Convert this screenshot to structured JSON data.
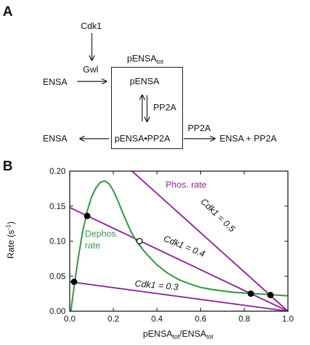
{
  "panel_a": {
    "label": "A",
    "cdk1": "Cdk1",
    "gwl": "Gwl",
    "ensa_left_top": "ENSA",
    "pensa_tot_main": "pENSA",
    "pensa_tot_sub": "tot",
    "pensa_box": "pENSA",
    "pp2a_side": "PP2A",
    "complex": "pENSA•PP2A",
    "ensa_left_bottom": "ENSA",
    "pp2a_right": "PP2A",
    "products": "ENSA + PP2A"
  },
  "panel_b": {
    "label": "B"
  },
  "colors": {
    "phos": "#8e2a9b",
    "dephos": "#3a9a47",
    "axis": "#111111"
  },
  "chart_data": {
    "type": "line",
    "xlabel_parts": [
      "pENSA",
      "tot",
      "/ENSA",
      "tot"
    ],
    "ylabel_parts": [
      "Rate (s",
      "-1",
      ")"
    ],
    "xlim": [
      0,
      1
    ],
    "ylim": [
      0,
      0.2
    ],
    "xticks": [
      0.0,
      0.2,
      0.4,
      0.6,
      0.8,
      1.0
    ],
    "xtick_labels": [
      "0.0",
      "0.2",
      "0.4",
      "0.6",
      "0.8",
      "1.0"
    ],
    "yticks": [
      0.0,
      0.05,
      0.1,
      0.15,
      0.2
    ],
    "ytick_labels": [
      "0.00",
      "0.05",
      "0.10",
      "0.15",
      "0.20"
    ],
    "series": [
      {
        "name": "Cdk1 = 0.5",
        "color": "#8e2a9b",
        "kind": "line",
        "x": [
          0.0,
          1.0
        ],
        "y": [
          0.28,
          0.0
        ]
      },
      {
        "name": "Cdk1 = 0.4",
        "color": "#8e2a9b",
        "kind": "line",
        "x": [
          0.0,
          1.0
        ],
        "y": [
          0.148,
          0.0
        ]
      },
      {
        "name": "Cdk1 = 0.3",
        "color": "#8e2a9b",
        "kind": "line",
        "x": [
          0.0,
          1.0
        ],
        "y": [
          0.042,
          0.0
        ]
      },
      {
        "name": "Dephos. rate",
        "color": "#3a9a47",
        "kind": "curve",
        "x": [
          0.005,
          0.02,
          0.04,
          0.06,
          0.08,
          0.1,
          0.12,
          0.14,
          0.16,
          0.18,
          0.2,
          0.22,
          0.24,
          0.26,
          0.28,
          0.3,
          0.33,
          0.36,
          0.4,
          0.45,
          0.5,
          0.55,
          0.6,
          0.65,
          0.7,
          0.75,
          0.8,
          0.85,
          0.9,
          0.95,
          1.0
        ],
        "y": [
          0.0,
          0.035,
          0.078,
          0.115,
          0.143,
          0.163,
          0.176,
          0.184,
          0.186,
          0.182,
          0.172,
          0.158,
          0.143,
          0.128,
          0.114,
          0.103,
          0.09,
          0.079,
          0.066,
          0.054,
          0.045,
          0.039,
          0.034,
          0.031,
          0.029,
          0.027,
          0.026,
          0.025,
          0.024,
          0.023,
          0.022
        ]
      }
    ],
    "points": [
      {
        "x": 0.08,
        "y": 0.136,
        "fill": "black"
      },
      {
        "x": 0.32,
        "y": 0.1,
        "fill": "white"
      },
      {
        "x": 0.02,
        "y": 0.042,
        "fill": "black"
      },
      {
        "x": 0.83,
        "y": 0.025,
        "fill": "black"
      },
      {
        "x": 0.92,
        "y": 0.023,
        "fill": "black"
      }
    ],
    "annotations": {
      "phos": "Phos. rate",
      "dephos_1": "Dephos.",
      "dephos_2": "rate",
      "cdk_05": "Cdk1 = 0.5",
      "cdk_04": "Cdk1 = 0.4",
      "cdk_03": "Cdk1 = 0.3"
    }
  }
}
